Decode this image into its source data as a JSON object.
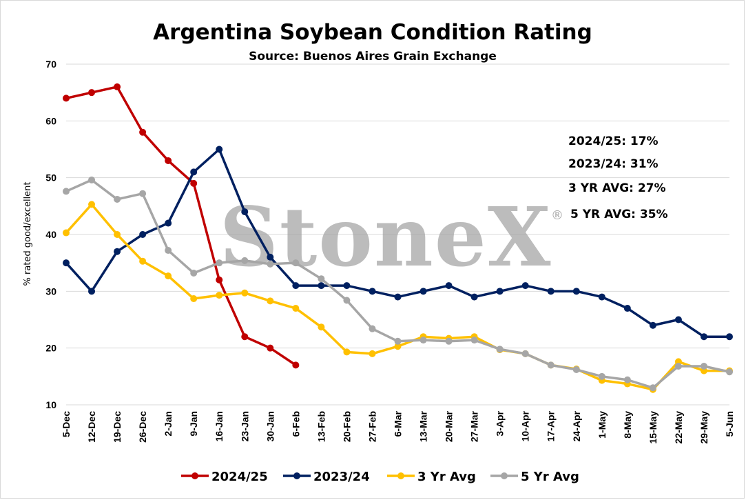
{
  "chart_data": {
    "type": "line",
    "title": "Argentina Soybean Condition Rating",
    "subtitle": "Source: Buenos Aires Grain Exchange",
    "ylabel": "% rated good/excellent",
    "xlabel": "",
    "ylim": [
      10,
      70
    ],
    "yticks": [
      10,
      20,
      30,
      40,
      50,
      60,
      70
    ],
    "grid": "horizontal",
    "legend_position": "bottom",
    "watermark": "StoneX",
    "watermark_mark": "®",
    "categories": [
      "5-Dec",
      "12-Dec",
      "19-Dec",
      "26-Dec",
      "2-Jan",
      "9-Jan",
      "16-Jan",
      "23-Jan",
      "30-Jan",
      "6-Feb",
      "13-Feb",
      "20-Feb",
      "27-Feb",
      "6-Mar",
      "13-Mar",
      "20-Mar",
      "27-Mar",
      "3-Apr",
      "10-Apr",
      "17-Apr",
      "24-Apr",
      "1-May",
      "8-May",
      "15-May",
      "22-May",
      "29-May",
      "5-Jun"
    ],
    "series": [
      {
        "name": "2024/25",
        "color": "#c00000",
        "values": [
          64,
          65,
          66,
          58,
          53,
          49,
          32,
          22,
          20,
          17,
          null,
          null,
          null,
          null,
          null,
          null,
          null,
          null,
          null,
          null,
          null,
          null,
          null,
          null,
          null,
          null,
          null
        ]
      },
      {
        "name": "2023/24",
        "color": "#002060",
        "values": [
          35,
          30,
          37,
          40,
          42,
          51,
          55,
          44,
          36,
          31,
          31,
          31,
          30,
          29,
          30,
          31,
          29,
          30,
          31,
          30,
          30,
          29,
          27,
          24,
          25,
          22,
          22
        ]
      },
      {
        "name": "3 Yr Avg",
        "color": "#ffc000",
        "values": [
          40.3,
          45.3,
          40,
          35.3,
          32.7,
          28.7,
          29.3,
          29.7,
          28.3,
          27,
          23.7,
          19.3,
          19,
          20.3,
          22,
          21.7,
          22,
          19.7,
          19,
          17,
          16.3,
          14.3,
          13.7,
          12.7,
          17.6,
          16,
          16
        ]
      },
      {
        "name": "5 Yr Avg",
        "color": "#a6a6a6",
        "values": [
          47.6,
          49.6,
          46.2,
          47.2,
          37.2,
          33.2,
          35,
          35.4,
          34.8,
          35,
          32.2,
          28.4,
          23.4,
          21.2,
          21.4,
          21.2,
          21.4,
          19.8,
          19,
          17,
          16.2,
          15,
          14.4,
          13,
          16.8,
          16.8,
          15.8
        ]
      }
    ],
    "annotations": [
      "2024/25: 17%",
      "2023/24: 31%",
      "3 YR AVG: 27%",
      "5 YR AVG: 35%"
    ]
  }
}
